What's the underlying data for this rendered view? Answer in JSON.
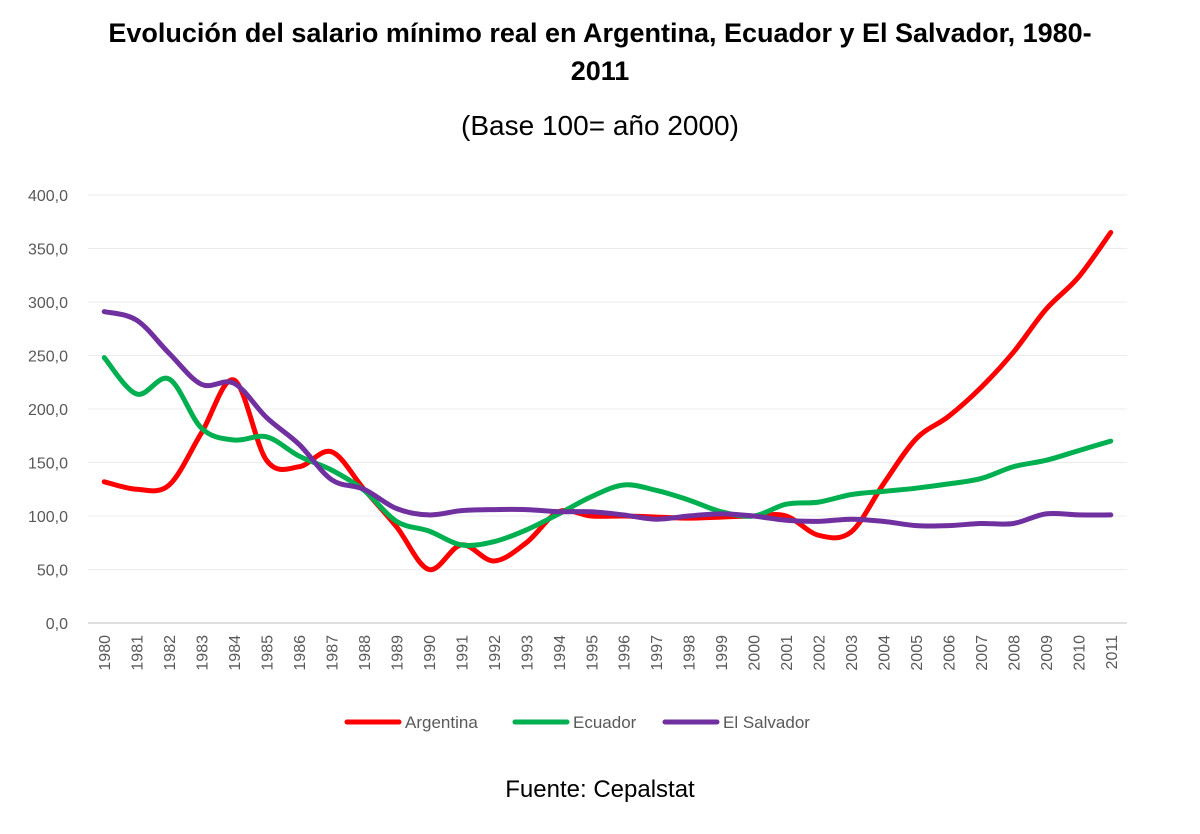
{
  "chart_data": {
    "type": "line",
    "title_line1": "Evolución del salario mínimo real en Argentina, Ecuador y El Salvador, 1980-",
    "title_line2": "2011",
    "subtitle": "(Base 100= año 2000)",
    "source": "Fuente: Cepalstat",
    "ylim": [
      0,
      400
    ],
    "ytick_values": [
      0,
      50,
      100,
      150,
      200,
      250,
      300,
      350,
      400
    ],
    "ytick_labels": [
      "0,0",
      "50,0",
      "100,0",
      "150,0",
      "200,0",
      "250,0",
      "300,0",
      "350,0",
      "400,0"
    ],
    "grid": true,
    "legend_position": "bottom",
    "x": [
      "1980",
      "1981",
      "1982",
      "1983",
      "1984",
      "1985",
      "1986",
      "1987",
      "1988",
      "1989",
      "1990",
      "1991",
      "1992",
      "1993",
      "1994",
      "1995",
      "1996",
      "1997",
      "1998",
      "1999",
      "2000",
      "2001",
      "2002",
      "2003",
      "2004",
      "2005",
      "2006",
      "2007",
      "2008",
      "2009",
      "2010",
      "2011"
    ],
    "series": [
      {
        "name": "Argentina",
        "color": "#ff0000",
        "values": [
          132,
          125,
          129,
          178,
          227,
          152,
          146,
          160,
          125,
          90,
          50,
          73,
          58,
          75,
          104,
          100,
          100,
          99,
          98,
          99,
          100,
          100,
          82,
          85,
          130,
          172,
          193,
          220,
          253,
          293,
          323,
          365
        ]
      },
      {
        "name": "Ecuador",
        "color": "#00b050",
        "values": [
          248,
          214,
          228,
          182,
          171,
          174,
          156,
          143,
          124,
          95,
          86,
          73,
          76,
          87,
          102,
          118,
          129,
          124,
          115,
          104,
          100,
          111,
          113,
          120,
          123,
          126,
          130,
          135,
          146,
          152,
          161,
          170
        ]
      },
      {
        "name": "El Salvador",
        "color": "#7030a0",
        "values": [
          291,
          283,
          252,
          223,
          224,
          192,
          167,
          134,
          125,
          107,
          101,
          105,
          106,
          106,
          104,
          104,
          101,
          97,
          100,
          102,
          100,
          96,
          95,
          97,
          95,
          91,
          91,
          93,
          93,
          102,
          101,
          101
        ]
      }
    ]
  }
}
